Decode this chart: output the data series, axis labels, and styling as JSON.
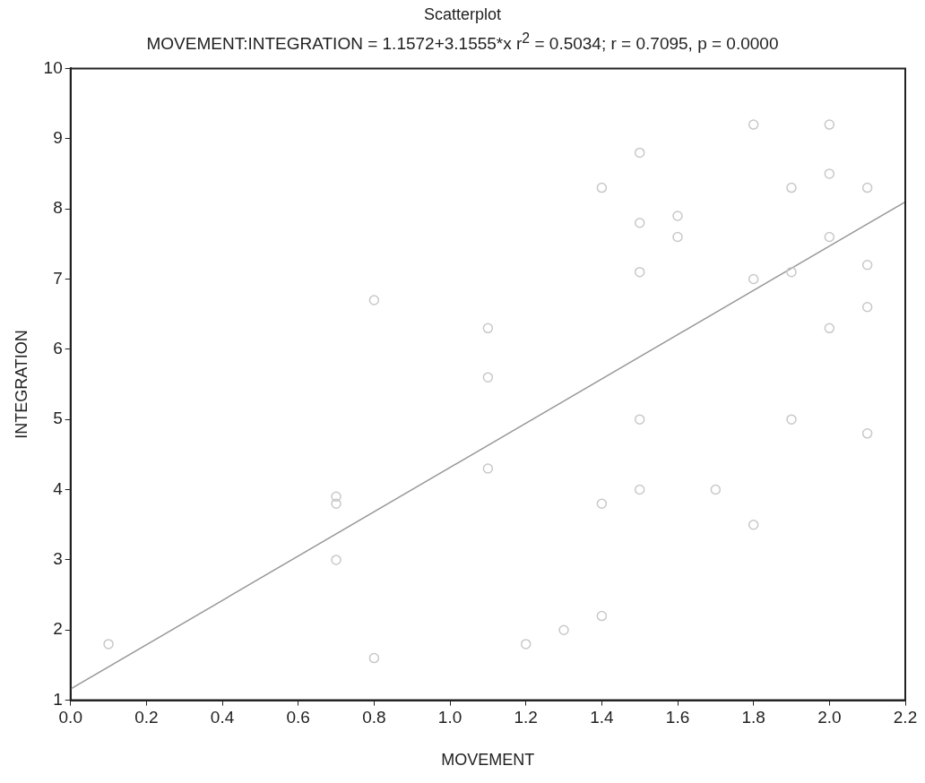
{
  "chart_data": {
    "type": "scatter",
    "title": "Scatterplot",
    "subtitle": "MOVEMENT:INTEGRATION = 1.1572+3.1555*x r$^{2}$ = 0.5034; r = 0.7095, p = 0.0000",
    "xlabel": "MOVEMENT",
    "ylabel": "INTEGRATION",
    "xlim": [
      0,
      2.2
    ],
    "ylim": [
      1,
      10
    ],
    "xticks": [
      {
        "value": 0,
        "label": "0.0"
      },
      0.2,
      0.4,
      0.6,
      0.8,
      {
        "value": 1,
        "label": "1.0"
      },
      1.2,
      1.4,
      1.6,
      1.8,
      {
        "value": 2,
        "label": "2.0"
      },
      2.2
    ],
    "yticks": [
      1,
      2,
      3,
      4,
      5,
      6,
      7,
      8,
      9,
      10
    ],
    "grid": false,
    "legend": false,
    "marker": "circle",
    "series": [
      {
        "color": "#c8c8c8",
        "x": [
          0.1,
          0.7,
          0.7,
          0.7,
          0.8,
          0.8,
          1.1,
          1.1,
          1.1,
          1.2,
          1.3,
          1.4,
          1.4,
          1.4,
          1.5,
          1.5,
          1.5,
          1.5,
          1.5,
          1.6,
          1.6,
          1.7,
          1.8,
          1.8,
          1.8,
          1.9,
          1.9,
          1.9,
          2.0,
          2.0,
          2.0,
          2.0,
          2.1,
          2.1,
          2.1,
          2.1
        ],
        "values": [
          1.8,
          3.8,
          3.9,
          3.0,
          6.7,
          1.6,
          6.3,
          5.6,
          4.3,
          1.8,
          2.0,
          2.2,
          3.8,
          8.3,
          8.8,
          7.8,
          7.1,
          5.0,
          4.0,
          7.9,
          7.6,
          4.0,
          9.2,
          3.5,
          7.0,
          8.3,
          7.1,
          5.0,
          9.2,
          8.5,
          7.6,
          6.3,
          8.3,
          7.2,
          6.6,
          4.8
        ]
      },
      {
        "type": "line",
        "color": "#999999",
        "line_style": "solid",
        "marker": "none",
        "x": [
          0,
          2.2
        ],
        "values": [
          1.16,
          8.1
        ]
      }
    ]
  }
}
